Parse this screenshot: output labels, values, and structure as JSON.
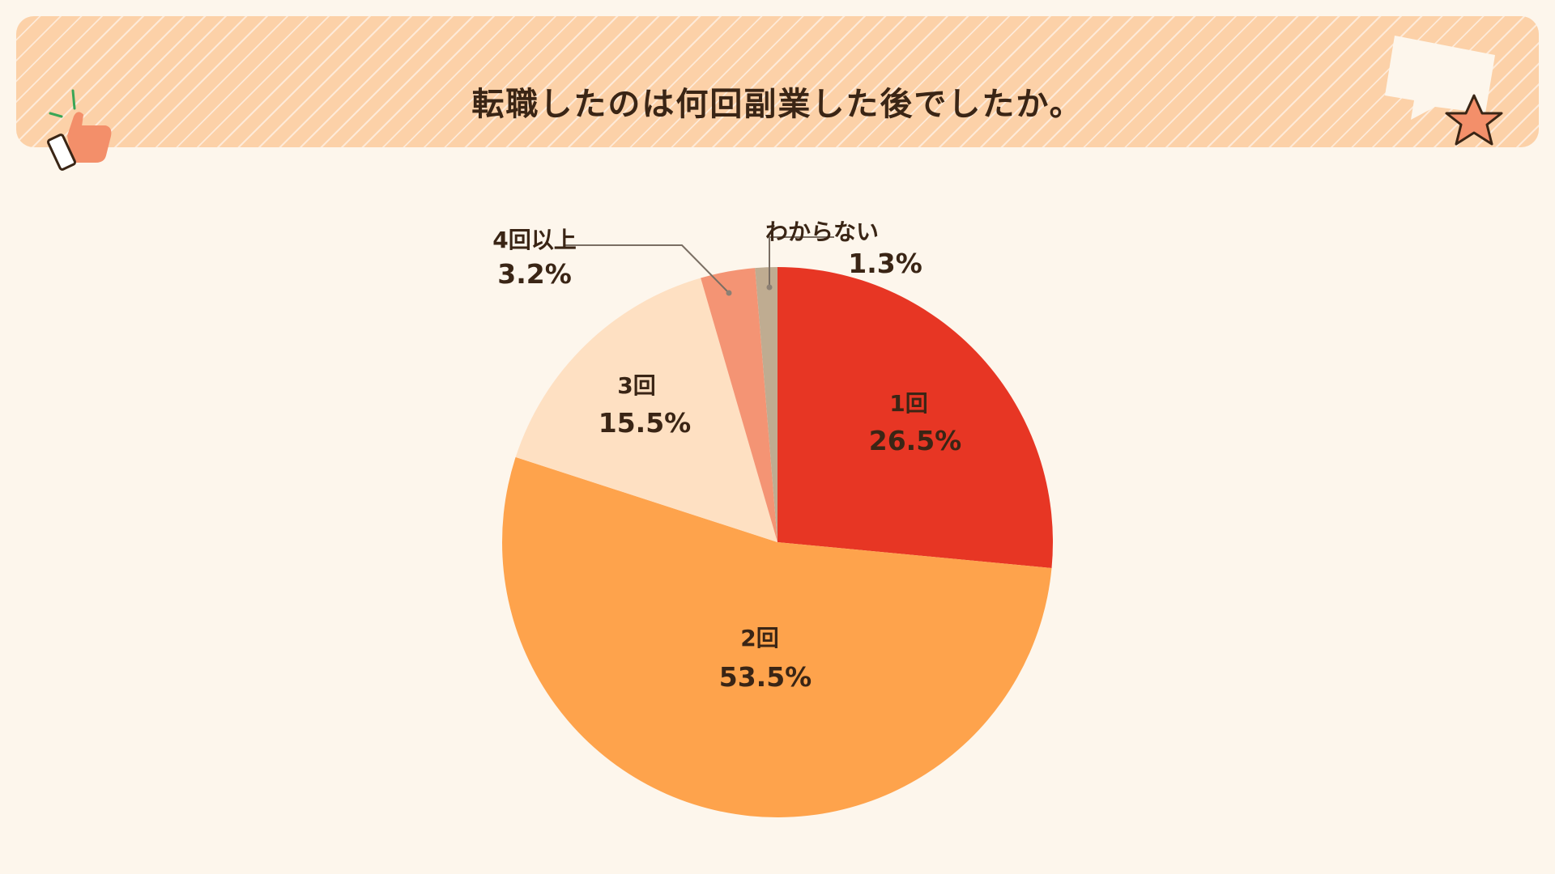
{
  "header": {
    "title": "転職したのは何回副業した後でしたか。"
  },
  "chart_data": {
    "type": "pie",
    "title": "転職したのは何回副業した後でしたか。",
    "start_angle": "12 o'clock",
    "direction": "clockwise",
    "slices": [
      {
        "label": "1回",
        "value": 26.5,
        "value_label": "26.5%",
        "color": "#e73624",
        "label_position": "inside"
      },
      {
        "label": "2回",
        "value": 53.5,
        "value_label": "53.5%",
        "color": "#fea34c",
        "label_position": "inside"
      },
      {
        "label": "3回",
        "value": 15.5,
        "value_label": "15.5%",
        "color": "#fee0c2",
        "label_position": "inside"
      },
      {
        "label": "4回以上",
        "value": 3.2,
        "value_label": "3.2%",
        "color": "#f49474",
        "label_position": "outside"
      },
      {
        "label": "わからない",
        "value": 1.3,
        "value_label": "1.3%",
        "color": "#bfac91",
        "label_position": "outside"
      }
    ]
  },
  "icons": [
    "thumbs-up-icon",
    "speech-bubble-icon",
    "star-icon"
  ]
}
